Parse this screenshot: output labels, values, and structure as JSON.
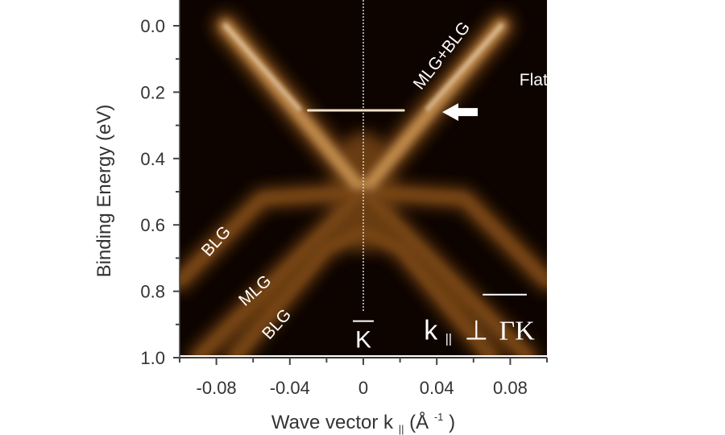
{
  "chart_data": {
    "type": "heatmap",
    "title": "",
    "xlabel_main": "Wave vector k",
    "xlabel_sub": "||",
    "xlabel_unit_open": " (Å",
    "xlabel_unit_sup": "-1",
    "xlabel_unit_close": ")",
    "ylabel": "Binding Energy (eV)",
    "xlim": [
      -0.1,
      0.1
    ],
    "ylim": [
      0.0,
      1.0
    ],
    "y_reversed": true,
    "x_ticks": [
      {
        "value": -0.08,
        "label": "-0.08"
      },
      {
        "value": -0.04,
        "label": "-0.04"
      },
      {
        "value": 0,
        "label": "0"
      },
      {
        "value": 0.04,
        "label": "0.04"
      },
      {
        "value": 0.08,
        "label": "0.08"
      }
    ],
    "x_minor_ticks": [
      -0.1,
      -0.06,
      -0.02,
      0.02,
      0.06,
      0.1
    ],
    "y_ticks": [
      {
        "value": 0.0,
        "label": "0.0"
      },
      {
        "value": 0.2,
        "label": "0.2"
      },
      {
        "value": 0.4,
        "label": "0.4"
      },
      {
        "value": 0.6,
        "label": "0.6"
      },
      {
        "value": 0.8,
        "label": "0.8"
      },
      {
        "value": 1.0,
        "label": "1.0"
      }
    ],
    "y_minor_ticks": [
      0.1,
      0.3,
      0.5,
      0.7,
      0.9
    ],
    "colormap": [
      "#000000",
      "#3a1a06",
      "#7a4618",
      "#c08a4c",
      "#f0e0c8"
    ],
    "k_point_x": 0,
    "dirac_point_energy": 0.5,
    "flat_band": {
      "energy": 0.255,
      "k_min": -0.03,
      "k_max": 0.022
    },
    "bands": [
      {
        "name": "MLG+BLG",
        "points": [
          [
            -0.075,
            0.0
          ],
          [
            0.0,
            0.5
          ],
          [
            0.075,
            0.0
          ]
        ]
      },
      {
        "name": "MLG",
        "points": [
          [
            -0.09,
            1.0
          ],
          [
            0.0,
            0.5
          ],
          [
            0.09,
            1.0
          ]
        ]
      },
      {
        "name": "BLG",
        "points": [
          [
            -0.1,
            0.77
          ],
          [
            -0.055,
            0.52
          ],
          [
            0.0,
            0.5
          ],
          [
            0.055,
            0.52
          ],
          [
            0.1,
            0.77
          ]
        ]
      },
      {
        "name": "BLG",
        "points": [
          [
            -0.07,
            1.0
          ],
          [
            -0.02,
            0.67
          ],
          [
            0.0,
            0.62
          ],
          [
            0.02,
            0.67
          ],
          [
            0.07,
            1.0
          ]
        ]
      }
    ],
    "annotations": [
      {
        "text": "MLG+BLG",
        "x": 0.045,
        "y": 0.1,
        "rotate": -52
      },
      {
        "text": "Flat band",
        "x": 0.085,
        "y": 0.18,
        "rotate": 0
      },
      {
        "text": "BLG",
        "x": -0.078,
        "y": 0.66,
        "rotate": -48
      },
      {
        "text": "MLG",
        "x": -0.057,
        "y": 0.81,
        "rotate": -42
      },
      {
        "text": "BLG",
        "x": -0.045,
        "y": 0.91,
        "rotate": -48
      }
    ],
    "k_label": "K",
    "direction_label_k": "k",
    "direction_label_sub": "||",
    "direction_label_perp": "⊥",
    "direction_label_path": "ΓK",
    "colors": {
      "annotation": "#ffffff",
      "axis": "#444444",
      "text": "#333333"
    }
  }
}
